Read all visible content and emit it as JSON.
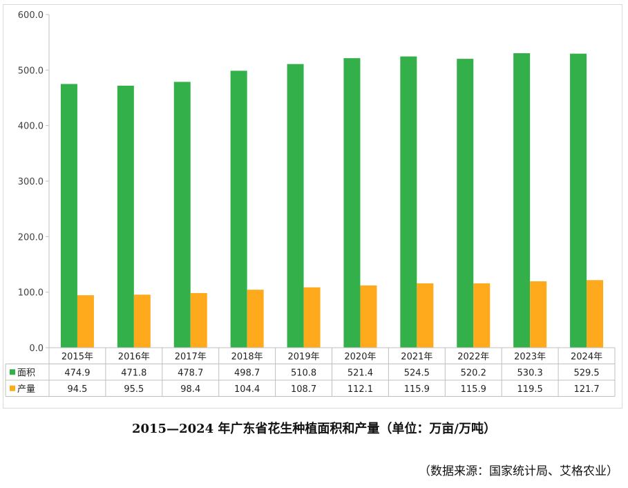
{
  "chart_data": {
    "type": "bar",
    "categories": [
      "2015年",
      "2016年",
      "2017年",
      "2018年",
      "2019年",
      "2020年",
      "2021年",
      "2022年",
      "2023年",
      "2024年"
    ],
    "series": [
      {
        "name": "面积",
        "color": "#33b04a",
        "values": [
          474.9,
          471.8,
          478.7,
          498.7,
          510.8,
          521.4,
          524.5,
          520.2,
          530.3,
          529.5
        ],
        "labels": [
          "474.9",
          "471.8",
          "478.7",
          "498.7",
          "510.8",
          "521.4",
          "524.5",
          "520.2",
          "530.3",
          "529.5"
        ]
      },
      {
        "name": "产量",
        "color": "#ffaa1d",
        "values": [
          94.5,
          95.5,
          98.4,
          104.4,
          108.7,
          112.1,
          115.9,
          115.9,
          119.5,
          121.7
        ],
        "labels": [
          "94.5",
          "95.5",
          "98.4",
          "104.4",
          "108.7",
          "112.1",
          "115.9",
          "115.9",
          "119.5",
          "121.7"
        ]
      }
    ],
    "yticks": [
      "0.0",
      "100.0",
      "200.0",
      "300.0",
      "400.0",
      "500.0",
      "600.0"
    ],
    "ylim": [
      0,
      600
    ],
    "title": "2015—2024 年广东省花生种植面积和产量（单位：万亩/万吨）",
    "legend": "data-table"
  },
  "caption": "2015—2024 年广东省花生种植面积和产量（单位：万亩/万吨）",
  "source": "（数据来源：国家统计局、艾格农业）"
}
